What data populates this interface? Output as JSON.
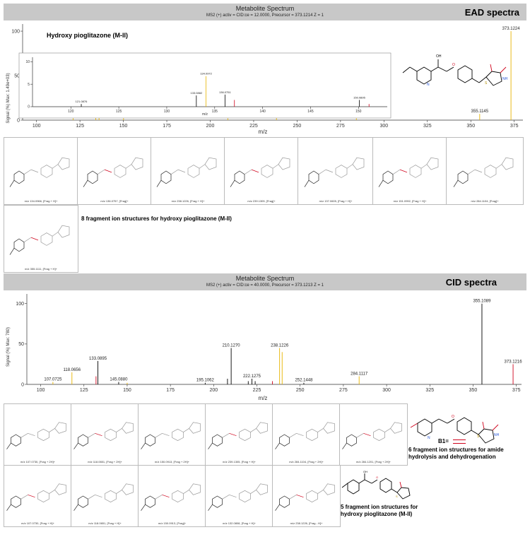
{
  "colors": {
    "header_bg": "#c8c8c8",
    "peak_yellow": "#e8b400",
    "peak_black": "#000000",
    "peak_red": "#d0021b"
  },
  "ead": {
    "title": "Metabolite Spectrum",
    "subtitle": "MS2 (+) activ = CID:ce = 12.0000, Precursor = 373.1214 Z = 1",
    "tag": "EAD spectra",
    "compound": "Hydroxy pioglitazone (M-II)",
    "ylabel": "Signal (%) Max: 1.49e+03)",
    "xlabel": "m/z",
    "inset_xlabel": "m/z",
    "note": "8 fragment ion structures for hydroxy pioglitazone (M-II)",
    "fragments": [
      "m/z 134.0966, [Frag + H]+",
      "m/z 136.0757, [Frag]+",
      "m/z 238.1226, [Frag + H]+",
      "m/z 239.1305, [Frag]+",
      "m/z 137.0605, [Frag + H]+",
      "m/z 151.0992, [Frag + H]+",
      "m/z 284.1104, [Frag]+",
      "m/z 355.1111, [Frag + H]+"
    ]
  },
  "cid": {
    "title": "Metabolite Spectrum",
    "subtitle": "MS2 (+) activ = CID:ce = 40.0000, Precursor = 373.1213 Z = 1",
    "tag": "CID spectra",
    "ylabel": "Signal (%) Max: 780)",
    "xlabel": "m/z",
    "b1_label": "B1=",
    "note1": "6 fragment ion structures for amide hydrolysis and dehydrogenation",
    "note2": "5 fragment ion structures for hydroxy pioglitazone (M-II)",
    "fragments_row1": [
      "m/z 107.0730, [Frag + 2H]+",
      "m/z 118.0651, [Frag + 2H]+",
      "m/z 150.0913, [Frag + 2H]+",
      "m/z 239.1305, [Frag + H]+",
      "m/z 284.1104, [Frag + 2H]+",
      "m/z 284.1201, [Frag + 2H]+"
    ],
    "fragments_row2": [
      "m/z 107.0730, [Frag + H]+",
      "m/z 118.0651, [Frag + H]+",
      "m/z 150.0913, [Frag]+",
      "m/z 132.0808, [Frag + H]+",
      "m/z 238.1226, [Frag - H]+"
    ]
  },
  "chart_data": [
    {
      "type": "bar",
      "name": "EAD main spectrum",
      "xlim": [
        92,
        380
      ],
      "ylim": [
        0,
        108
      ],
      "xticks": [
        100,
        125,
        150,
        175,
        200,
        225,
        250,
        275,
        300,
        325,
        350,
        375
      ],
      "yticks": [
        0,
        50,
        100
      ],
      "peaks": [
        {
          "x": 121.0876,
          "y": 2,
          "label": "121.0876",
          "color": "#e8b400"
        },
        {
          "x": 134.0972,
          "y": 4,
          "label": "134.0972",
          "color": "#e8b400"
        },
        {
          "x": 136.0,
          "y": 3,
          "label": "",
          "color": "#e8b400"
        },
        {
          "x": 150.0895,
          "y": 2,
          "label": "150.0895",
          "color": "#e8b400"
        },
        {
          "x": 210.1257,
          "y": 2,
          "label": "210.1257",
          "color": "#e8b400"
        },
        {
          "x": 238.1217,
          "y": 3,
          "label": "238.1217",
          "color": "#e8b400"
        },
        {
          "x": 284.1109,
          "y": 2,
          "label": "284.1109",
          "color": "#e8b400"
        },
        {
          "x": 355.1145,
          "y": 7,
          "label": "355.1145",
          "color": "#e8b400"
        },
        {
          "x": 373.1224,
          "y": 100,
          "label": "373.1224",
          "color": "#e8b400"
        }
      ]
    },
    {
      "type": "bar",
      "name": "EAD inset zoom",
      "xlim": [
        116,
        153
      ],
      "ylim": [
        0,
        11
      ],
      "xticks": [
        120,
        125,
        130,
        135,
        140,
        145,
        150
      ],
      "yticks": [
        0,
        5,
        10
      ],
      "peaks": [
        {
          "x": 121.0876,
          "y": 0.6,
          "label": "121.0876",
          "color": "#000000"
        },
        {
          "x": 133.0882,
          "y": 2.5,
          "label": "133.0882",
          "color": "#000000"
        },
        {
          "x": 134.0972,
          "y": 6.8,
          "label": "134.0972",
          "color": "#e8b400"
        },
        {
          "x": 136.0751,
          "y": 2.7,
          "label": "136.0751",
          "color": "#000000"
        },
        {
          "x": 137.06,
          "y": 1.5,
          "label": "",
          "color": "#d0021b"
        },
        {
          "x": 150.0895,
          "y": 1.5,
          "label": "150.0895",
          "color": "#000000"
        },
        {
          "x": 151.1,
          "y": 0.6,
          "label": "",
          "color": "#d0021b"
        }
      ]
    },
    {
      "type": "bar",
      "name": "CID spectrum",
      "xlim": [
        92,
        378
      ],
      "ylim": [
        0,
        112
      ],
      "xticks": [
        100,
        125,
        150,
        175,
        200,
        225,
        250,
        275,
        300,
        325,
        350,
        375
      ],
      "yticks": [
        0,
        50,
        100
      ],
      "peaks": [
        {
          "x": 107.0725,
          "y": 3,
          "label": "107.0725",
          "color": "#e8b400"
        },
        {
          "x": 118.0656,
          "y": 15,
          "label": "118.0656",
          "color": "#e8b400"
        },
        {
          "x": 132.0,
          "y": 10,
          "label": "",
          "color": "#d0021b"
        },
        {
          "x": 133.0895,
          "y": 29,
          "label": "133.0895",
          "color": "#000000"
        },
        {
          "x": 145.088,
          "y": 3,
          "label": "145.0880",
          "color": "#000000"
        },
        {
          "x": 150.0,
          "y": 2,
          "label": "",
          "color": "#e8b400"
        },
        {
          "x": 195.1062,
          "y": 2,
          "label": "195.1062",
          "color": "#000000"
        },
        {
          "x": 208.0,
          "y": 7,
          "label": "",
          "color": "#000000"
        },
        {
          "x": 210.127,
          "y": 45,
          "label": "210.1270",
          "color": "#000000"
        },
        {
          "x": 220.0,
          "y": 4,
          "label": "",
          "color": "#000000"
        },
        {
          "x": 222.1275,
          "y": 7,
          "label": "222.1275",
          "color": "#000000"
        },
        {
          "x": 224.0,
          "y": 4,
          "label": "",
          "color": "#000000"
        },
        {
          "x": 234.0,
          "y": 4,
          "label": "",
          "color": "#d0021b"
        },
        {
          "x": 238.1226,
          "y": 45,
          "label": "238.1226",
          "color": "#e8b400"
        },
        {
          "x": 239.6,
          "y": 40,
          "label": "",
          "color": "#e8b400"
        },
        {
          "x": 252.1448,
          "y": 2,
          "label": "252.1448",
          "color": "#000000"
        },
        {
          "x": 284.1117,
          "y": 10,
          "label": "284.1117",
          "color": "#e8b400"
        },
        {
          "x": 355.1089,
          "y": 100,
          "label": "355.1089",
          "color": "#000000"
        },
        {
          "x": 373.1216,
          "y": 25,
          "label": "373.1216",
          "color": "#d0021b"
        }
      ]
    }
  ]
}
